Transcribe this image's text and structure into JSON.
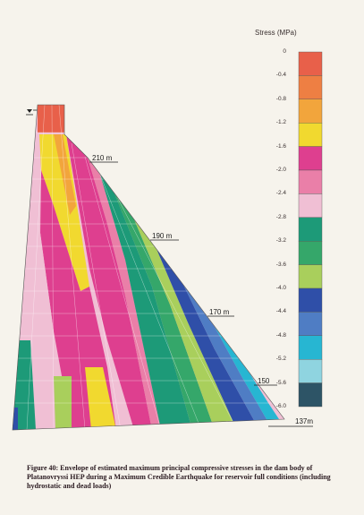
{
  "legend": {
    "title": "Stress (MPa)",
    "labels": [
      "0",
      "-0.4",
      "-0.8",
      "-1.2",
      "-1.6",
      "-2.0",
      "-2.4",
      "-2.8",
      "-3.2",
      "-3.6",
      "-4.0",
      "-4.4",
      "-4.8",
      "-5.2",
      "-5.6",
      "-6.0"
    ],
    "colors": [
      "#e8604a",
      "#ee7f43",
      "#f2a53c",
      "#f1d92f",
      "#de3f8f",
      "#ea7fa8",
      "#f0bfd4",
      "#1d9a78",
      "#35a76a",
      "#a9cf5c",
      "#2f4fa8",
      "#4f7dc4",
      "#27b6d2",
      "#8fd4e0",
      "#2d5466"
    ]
  },
  "elevations": [
    "210 m",
    "190 m",
    "170 m",
    "150",
    "137m"
  ],
  "caption": "Figure 40: Envelope of estimated maximum principal compressive stresses in the dam body of Platanovryssi HEP during a Maximum Credible Earthquake for reservoir full conditions (including hydrostatic and dead loads)"
}
